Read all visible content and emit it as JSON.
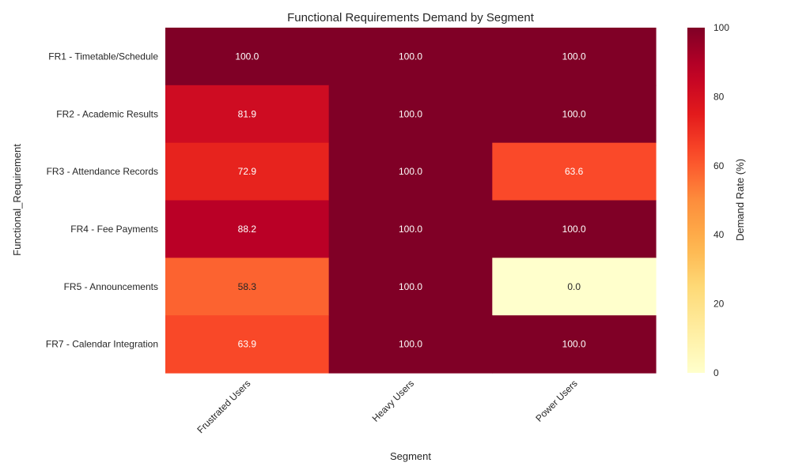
{
  "chart_data": {
    "type": "heatmap",
    "title": "Functional Requirements Demand by Segment",
    "xlabel": "Segment",
    "ylabel": "Functional_Requirement",
    "x_categories": [
      "Frustrated Users",
      "Heavy Users",
      "Power Users"
    ],
    "y_categories": [
      "FR1 - Timetable/Schedule",
      "FR2 - Academic Results",
      "FR3 - Attendance Records",
      "FR4 - Fee Payments",
      "FR5 - Announcements",
      "FR7 - Calendar Integration"
    ],
    "values": [
      [
        100.0,
        100.0,
        100.0
      ],
      [
        81.9,
        100.0,
        100.0
      ],
      [
        72.9,
        100.0,
        63.6
      ],
      [
        88.2,
        100.0,
        100.0
      ],
      [
        58.3,
        100.0,
        0.0
      ],
      [
        63.9,
        100.0,
        100.0
      ]
    ],
    "value_format": "0.0",
    "colormap": "YlOrRd",
    "vmin": 0,
    "vmax": 100,
    "colorbar": {
      "label": "Demand Rate (%)",
      "ticks": [
        0,
        20,
        40,
        60,
        80,
        100
      ]
    },
    "annotation_colors": {
      "dark_bg": "#ffffff",
      "light_bg": "#262626"
    },
    "grid": false
  }
}
